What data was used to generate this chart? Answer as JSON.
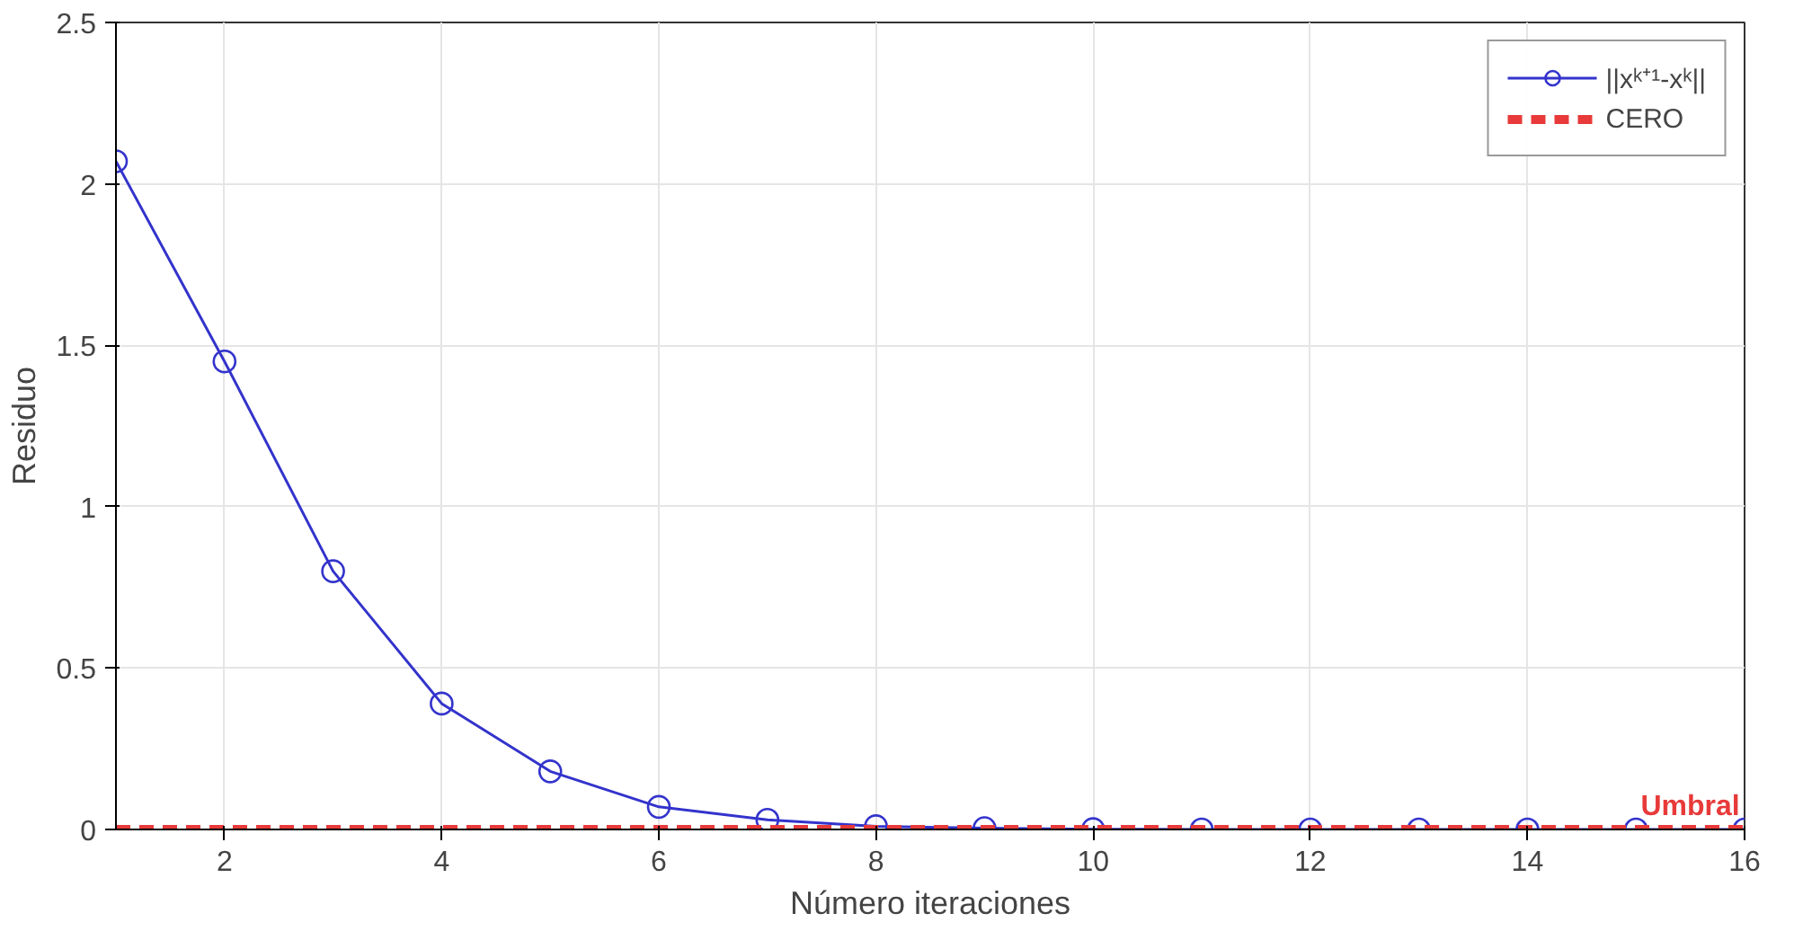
{
  "chart_data": {
    "type": "line",
    "xlabel": "Número iteraciones",
    "ylabel": "Residuo",
    "x": [
      1,
      2,
      3,
      4,
      5,
      6,
      7,
      8,
      9,
      10,
      11,
      12,
      13,
      14,
      15,
      16
    ],
    "series": [
      {
        "name": "||xᵏ⁺¹-xᵏ||",
        "color": "#3333cc",
        "marker": "circle",
        "line_style": "solid",
        "values": [
          2.07,
          1.45,
          0.8,
          0.39,
          0.18,
          0.07,
          0.03,
          0.01,
          0.004,
          0.001,
          0,
          0,
          0,
          0,
          0,
          0
        ]
      },
      {
        "name": "CERO",
        "color": "#e83a3a",
        "marker": "none",
        "line_style": "dashed",
        "values": [
          0,
          0,
          0,
          0,
          0,
          0,
          0,
          0,
          0,
          0,
          0,
          0,
          0,
          0,
          0,
          0
        ]
      }
    ],
    "annotations": [
      {
        "text": "Umbral",
        "x": 15.5,
        "y": 0
      }
    ],
    "xlim": [
      1,
      16
    ],
    "xticks": [
      2,
      4,
      6,
      8,
      10,
      12,
      14,
      16
    ],
    "ylim": [
      0,
      2.5
    ],
    "yticks": [
      0,
      0.5,
      1,
      1.5,
      2,
      2.5
    ],
    "grid": true,
    "legend": "top right"
  }
}
